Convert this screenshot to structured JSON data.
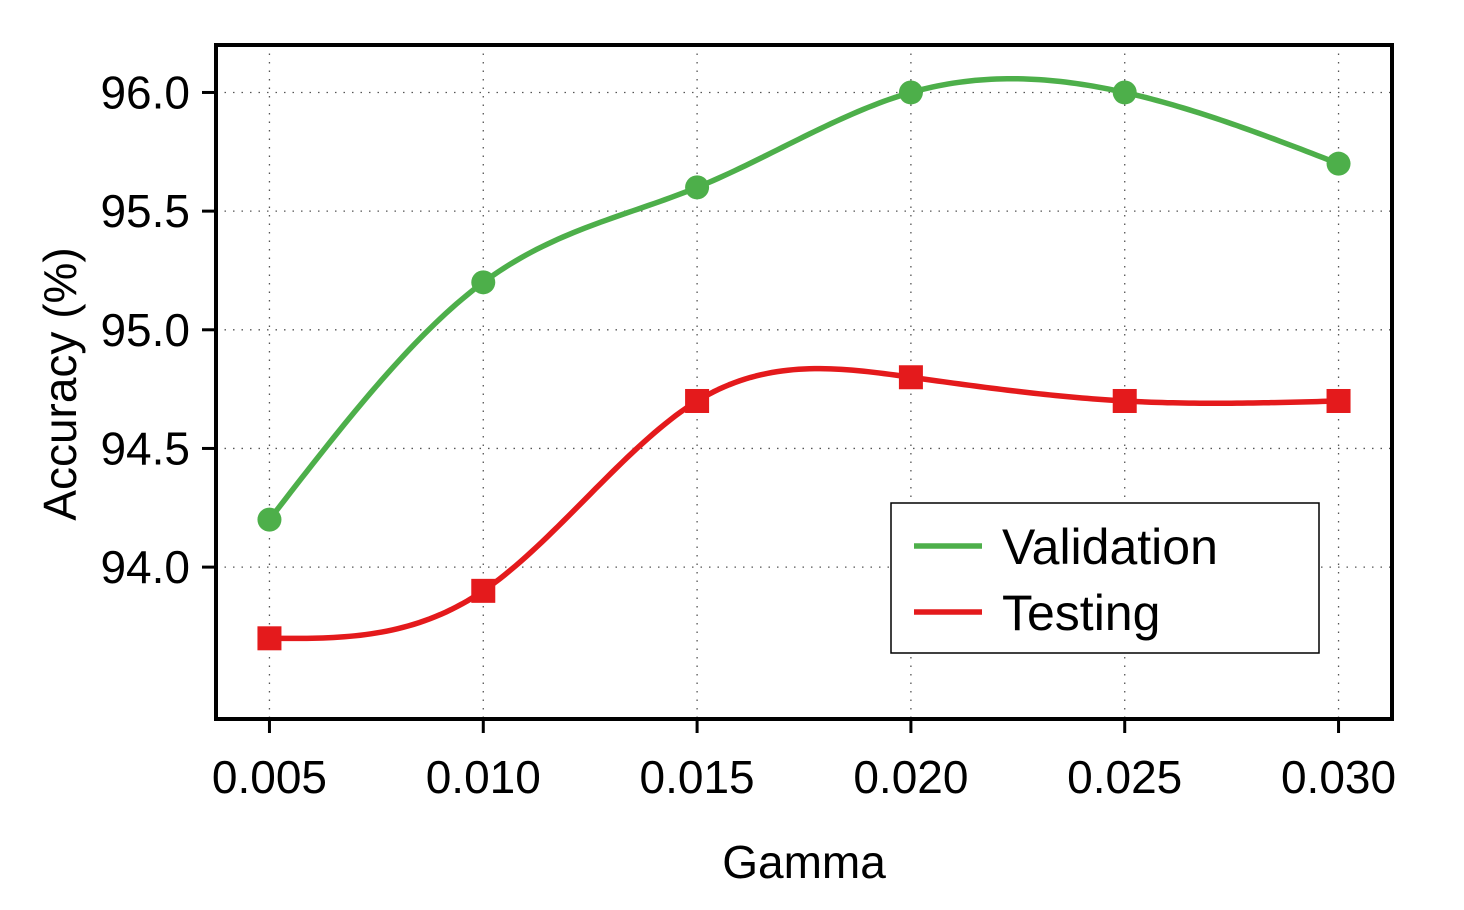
{
  "chart_data": {
    "type": "line",
    "xlabel": "Gamma",
    "ylabel": "Accuracy (%)",
    "x": [
      0.005,
      0.01,
      0.015,
      0.02,
      0.025,
      0.03
    ],
    "x_tick_labels": [
      "0.005",
      "0.010",
      "0.015",
      "0.020",
      "0.025",
      "0.030"
    ],
    "y_ticks": [
      94.0,
      94.5,
      95.0,
      95.5,
      96.0
    ],
    "y_tick_labels": [
      "94.0",
      "94.5",
      "95.0",
      "95.5",
      "96.0"
    ],
    "xlim": [
      0.00375,
      0.03125
    ],
    "ylim": [
      93.36,
      96.2
    ],
    "grid": true,
    "legend_position": "lower-right",
    "smooth": true,
    "series": [
      {
        "name": "Validation",
        "values": [
          94.2,
          95.2,
          95.6,
          96.0,
          96.0,
          95.7
        ],
        "color": "#4daf4a",
        "marker": "circle"
      },
      {
        "name": "Testing",
        "values": [
          93.7,
          93.9,
          94.7,
          94.8,
          94.7,
          94.7
        ],
        "color": "#e41a1c",
        "marker": "square"
      }
    ]
  }
}
